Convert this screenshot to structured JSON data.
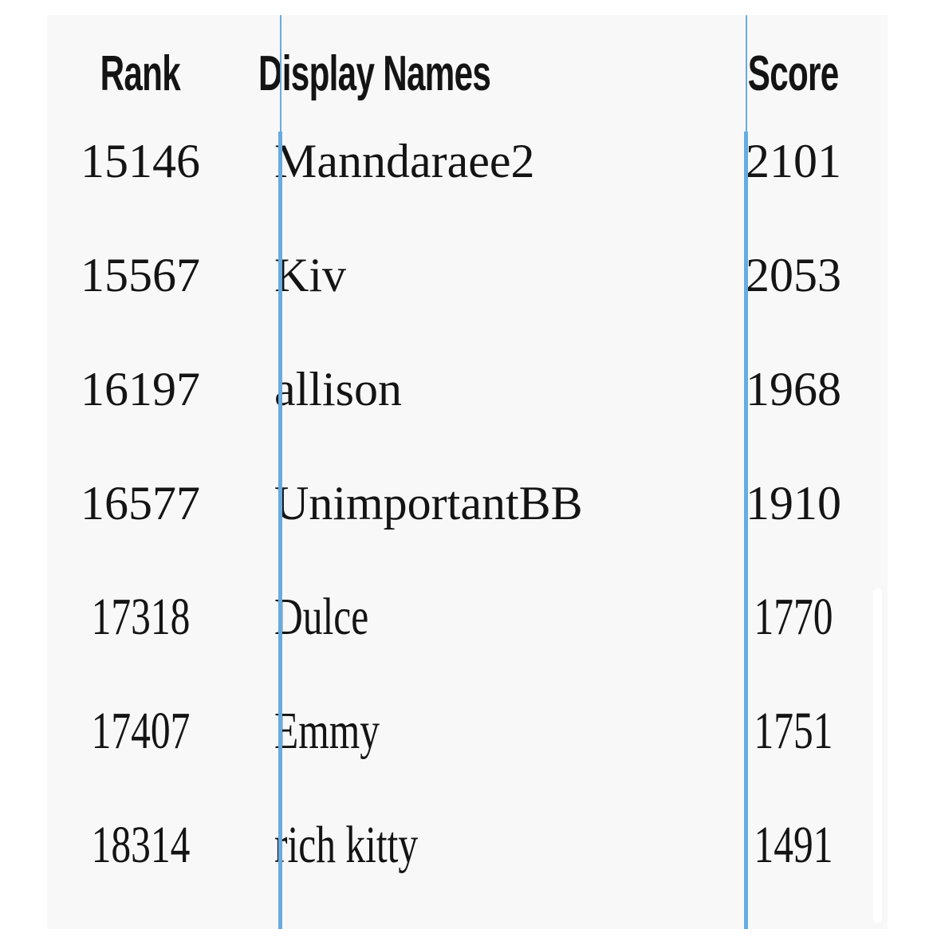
{
  "chart_data": {
    "type": "table",
    "columns": [
      "Rank",
      "Display Names",
      "Score"
    ],
    "rows": [
      {
        "rank": "15146",
        "display_name": "Manndaraee2",
        "score": "2101",
        "font_style": "regular"
      },
      {
        "rank": "15567",
        "display_name": "Kiv",
        "score": "2053",
        "font_style": "regular"
      },
      {
        "rank": "16197",
        "display_name": "allison",
        "score": "1968",
        "font_style": "regular"
      },
      {
        "rank": "16577",
        "display_name": "UnimportantBB",
        "score": "1910",
        "font_style": "regular"
      },
      {
        "rank": "17318",
        "display_name": "Dulce",
        "score": "1770",
        "font_style": "tall"
      },
      {
        "rank": "17407",
        "display_name": "Emmy",
        "score": "1751",
        "font_style": "tall"
      },
      {
        "rank": "18314",
        "display_name": "rich kitty",
        "score": "1491",
        "font_style": "tall"
      }
    ],
    "layout_hints": {
      "grid": "two vertical column dividers, no horizontal rules",
      "legend": "none"
    }
  },
  "colors": {
    "divider_blue": "#66acdf",
    "table_background": "#f8f8f8",
    "page_background": "#ffffff",
    "text": "#141414"
  },
  "scrollbar": {
    "visible": true
  }
}
